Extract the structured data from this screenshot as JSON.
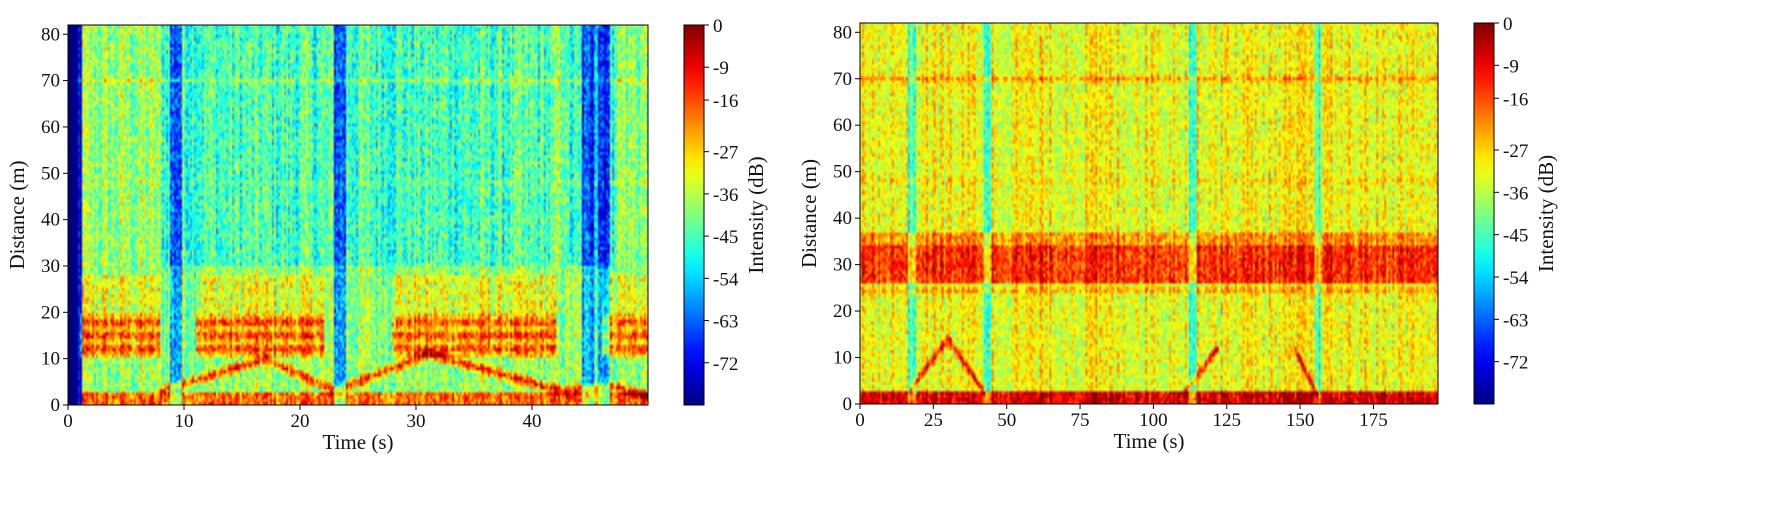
{
  "chart_data": [
    {
      "type": "heatmap",
      "title": "",
      "xlabel": "Time (s)",
      "ylabel": "Distance (m)",
      "xlim": [
        0,
        50
      ],
      "ylim": [
        0,
        82
      ],
      "xticks": [
        0,
        10,
        20,
        30,
        40
      ],
      "yticks": [
        0,
        10,
        20,
        30,
        40,
        50,
        60,
        70,
        80
      ],
      "colorbar": {
        "label": "Intensity (dB)",
        "range": [
          -81,
          0
        ],
        "ticks": [
          0,
          -9,
          -16,
          -27,
          -36,
          -45,
          -54,
          -63,
          -72
        ],
        "colormap": "jet"
      },
      "features": {
        "strong_band_distance_m": [
          10,
          20
        ],
        "strong_band_time_ranges_s": [
          [
            1,
            8
          ],
          [
            11,
            22
          ],
          [
            28,
            42
          ],
          [
            46,
            50
          ]
        ],
        "near_field_line_m": 2,
        "weak_line_m": 70,
        "trajectory": [
          [
            8,
            3
          ],
          [
            17,
            10
          ],
          [
            23,
            3
          ],
          [
            31,
            11
          ],
          [
            37,
            7
          ],
          [
            41,
            4
          ],
          [
            43,
            3
          ],
          [
            47,
            4
          ],
          [
            50,
            2
          ]
        ],
        "noisy_columns_s": [
          0.3,
          9.3,
          23.4,
          44.8,
          46.2
        ]
      }
    },
    {
      "type": "heatmap",
      "title": "",
      "xlabel": "Time (s)",
      "ylabel": "Distance (m)",
      "xlim": [
        0,
        197
      ],
      "ylim": [
        0,
        82
      ],
      "xticks": [
        0,
        25,
        50,
        75,
        100,
        125,
        150,
        175
      ],
      "yticks": [
        0,
        10,
        20,
        30,
        40,
        50,
        60,
        70,
        80
      ],
      "colorbar": {
        "label": "Intensity (dB)",
        "range": [
          -81,
          0
        ],
        "ticks": [
          0,
          -9,
          -16,
          -27,
          -36,
          -45,
          -54,
          -63,
          -72
        ],
        "colormap": "jet"
      },
      "features": {
        "strong_band_distance_m": [
          26,
          37
        ],
        "near_field_line_m": 2,
        "weak_line_m": 70,
        "rising_segments": [
          [
            [
              17,
              3
            ],
            [
              30,
              14
            ]
          ],
          [
            [
              110,
              2
            ],
            [
              122,
              12
            ]
          ]
        ],
        "falling_segments": [
          [
            [
              30,
              14
            ],
            [
              43,
              2
            ]
          ],
          [
            [
              148,
              12
            ],
            [
              156,
              2
            ]
          ]
        ],
        "noisy_columns_s": [
          17.5,
          43.5,
          113.5,
          155.8
        ]
      }
    }
  ]
}
